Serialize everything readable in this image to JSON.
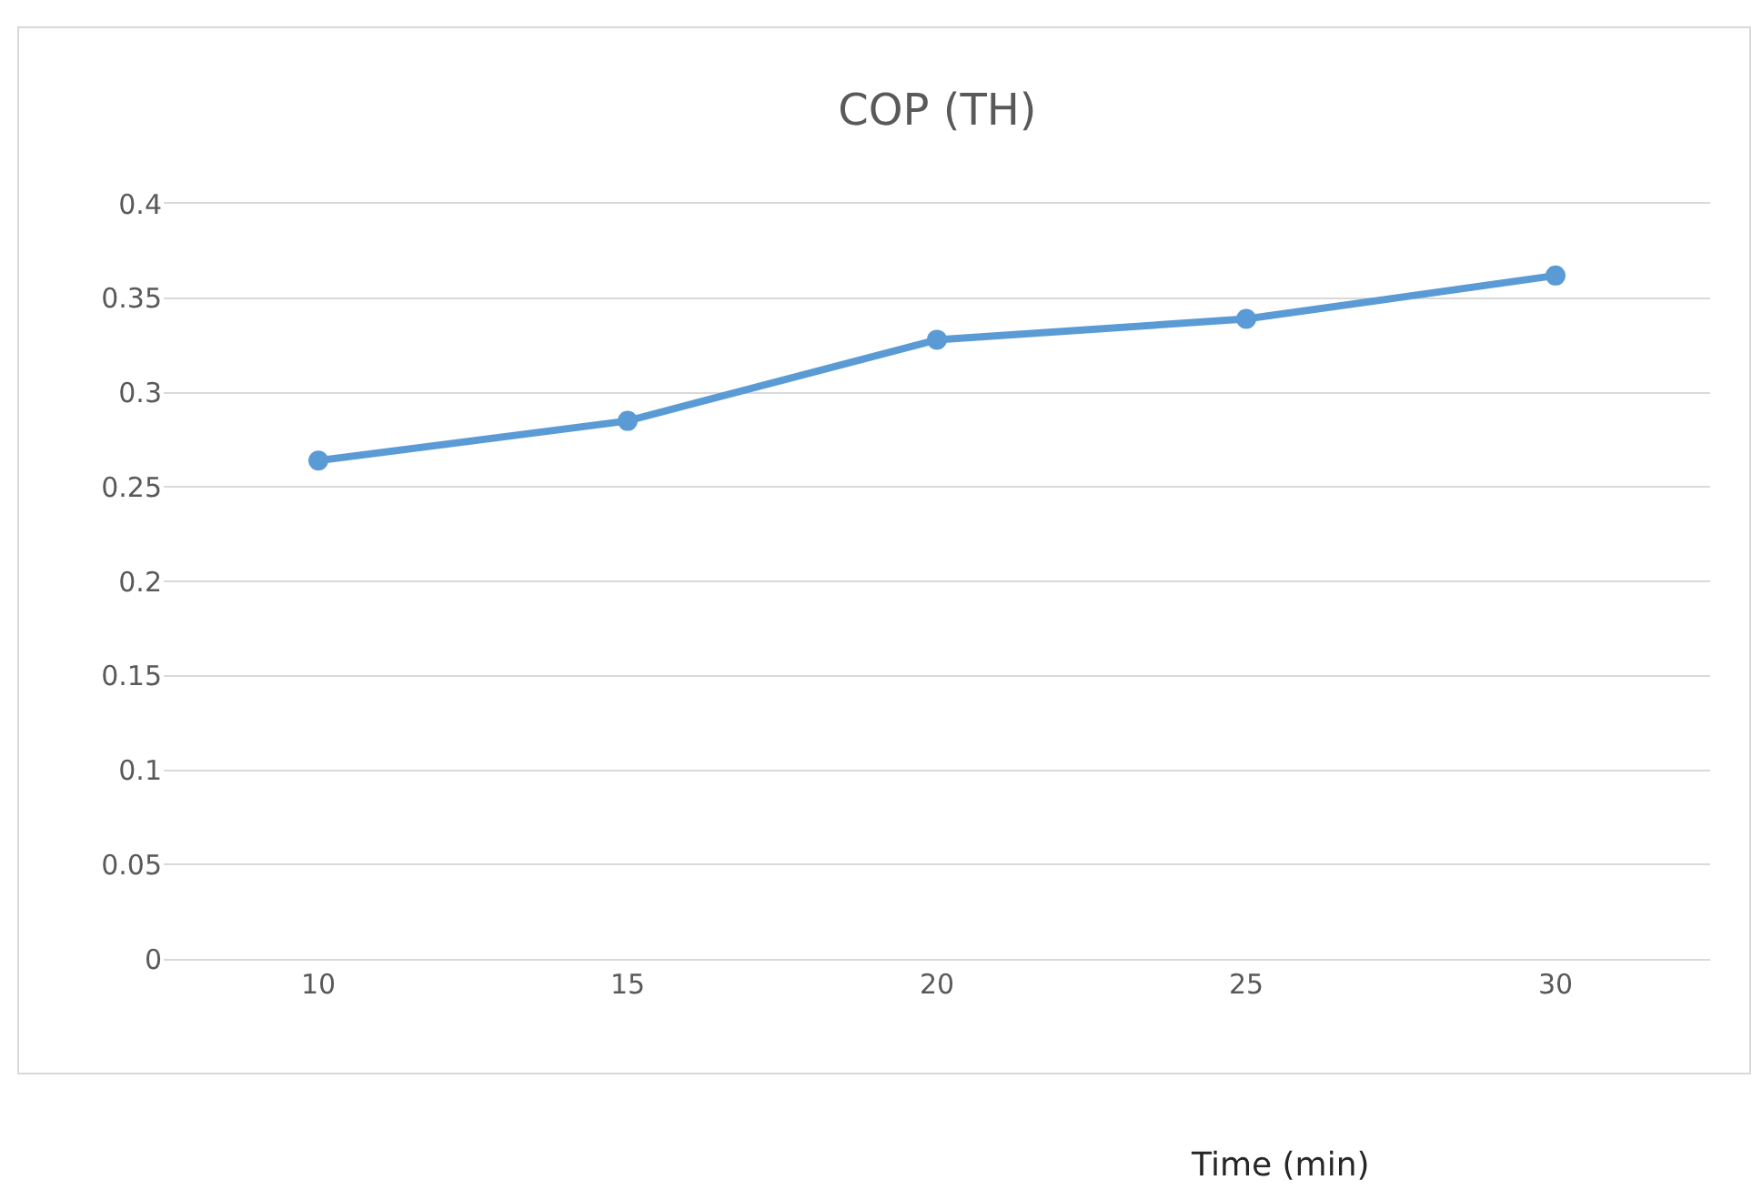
{
  "chart_data": {
    "type": "line",
    "title": "COP (TH)",
    "xlabel": "Time (min)",
    "categories": [
      "10",
      "15",
      "20",
      "25",
      "30"
    ],
    "series": [
      {
        "color": "#5b9bd5",
        "values": [
          0.264,
          0.285,
          0.328,
          0.339,
          0.362
        ]
      }
    ],
    "ylim": [
      0,
      0.4
    ],
    "yticks": [
      0,
      0.05,
      0.1,
      0.15,
      0.2,
      0.25,
      0.3,
      0.35,
      0.4
    ],
    "grid": "y",
    "marker": "circle",
    "line_style": "solid"
  }
}
